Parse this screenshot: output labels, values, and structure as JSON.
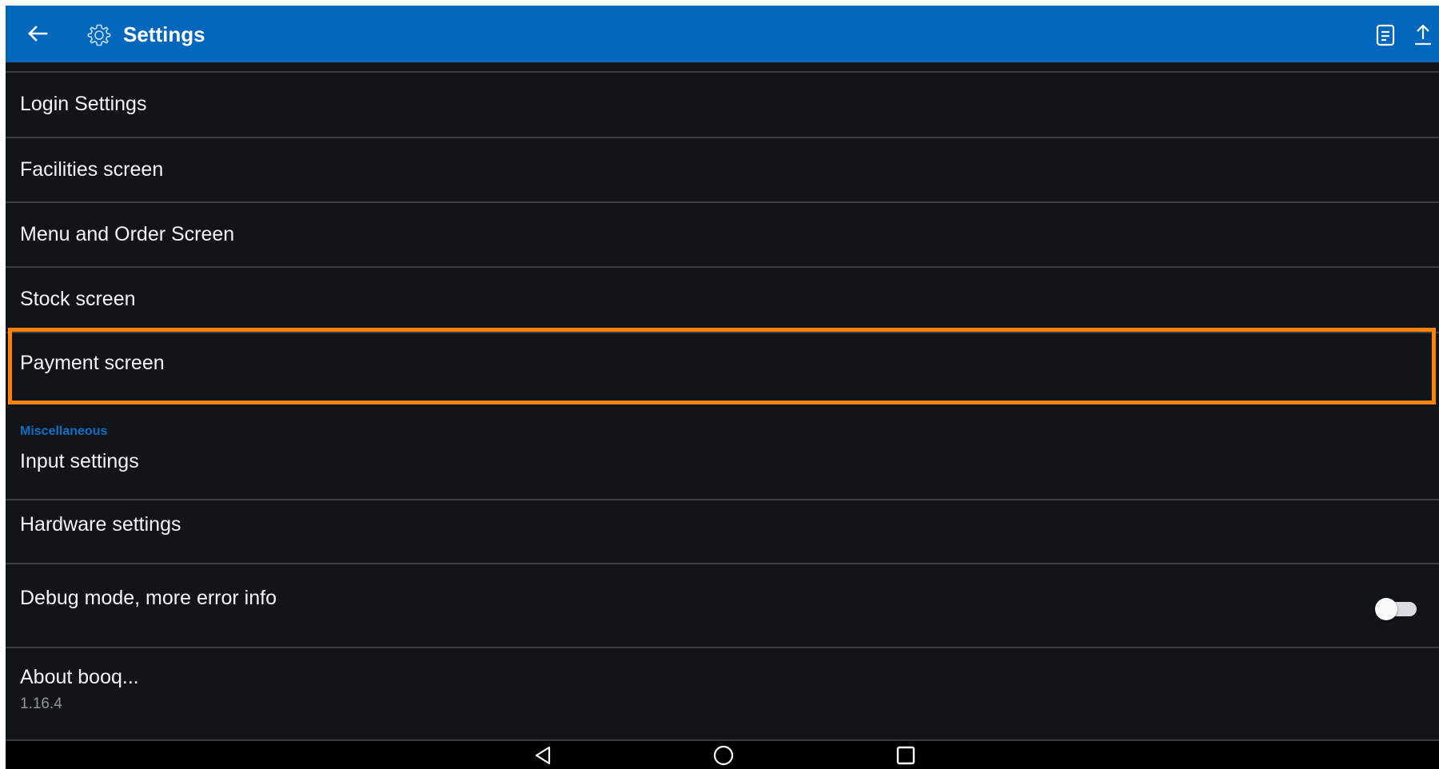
{
  "window": {
    "title": "Settings"
  },
  "appbar": {
    "back_icon": "arrow-left-icon",
    "settings_icon": "gear-icon",
    "actions": [
      {
        "icon": "notes-icon"
      },
      {
        "icon": "upload-icon"
      }
    ],
    "background_color": "#0067bd"
  },
  "settings": {
    "items": [
      {
        "label": "Login Settings"
      },
      {
        "label": "Facilities screen"
      },
      {
        "label": "Menu and Order Screen"
      },
      {
        "label": "Stock screen"
      },
      {
        "label": "Payment screen",
        "highlighted": true
      }
    ],
    "section_header": "Miscellaneous",
    "misc_items": [
      {
        "label": "Input settings"
      },
      {
        "label": "Hardware settings"
      },
      {
        "label": "Debug mode, more error info",
        "toggle": {
          "on": false
        }
      },
      {
        "label": "About booq...",
        "sub": "1.16.4"
      }
    ]
  },
  "highlight_color": "#ff8200",
  "navbar": {
    "buttons": [
      {
        "icon": "nav-back-icon"
      },
      {
        "icon": "nav-home-icon"
      },
      {
        "icon": "nav-recents-icon"
      }
    ]
  }
}
